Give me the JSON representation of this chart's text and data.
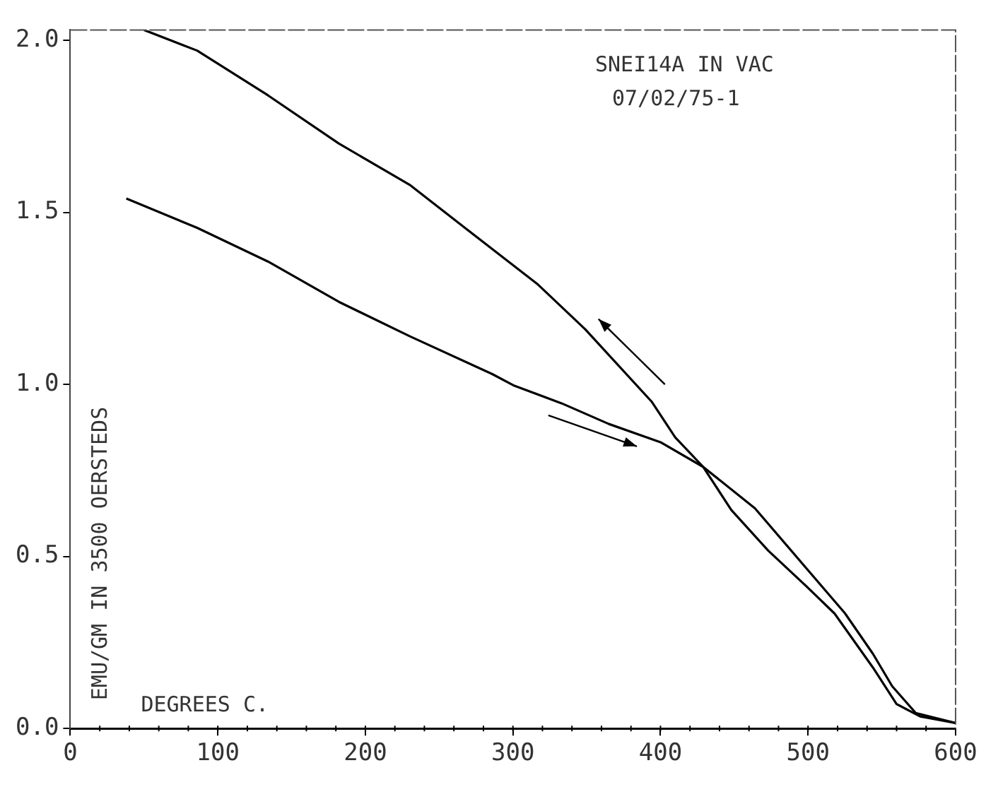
{
  "chart_data": {
    "type": "line",
    "xlabel": "DEGREES C.",
    "ylabel": "EMU/GM IN 3500 OERSTEDS",
    "annotations": [
      "SNEI14A IN VAC",
      "07/02/75-1"
    ],
    "xlim": [
      0,
      600
    ],
    "xticks": [
      0,
      100,
      200,
      300,
      400,
      500,
      600
    ],
    "ylim": [
      0,
      2.03
    ],
    "yticks": [
      {
        "value": 0,
        "label": "0.0"
      },
      {
        "value": 0.5,
        "label": "0.5"
      },
      {
        "value": 1,
        "label": "1.0"
      },
      {
        "value": 1.5,
        "label": "1.5"
      },
      {
        "value": 2,
        "label": "2.0"
      }
    ],
    "grid": false,
    "legend": false,
    "marker": "none",
    "line_style": "solid",
    "series": [
      {
        "color": "#000000",
        "x": [
          38,
          86,
          134,
          182,
          230,
          286,
          301,
          333,
          365,
          400,
          429,
          464,
          499,
          525,
          544,
          557,
          573,
          600
        ],
        "values": [
          1.54,
          1.455,
          1.357,
          1.24,
          1.14,
          1.03,
          0.996,
          0.945,
          0.885,
          0.832,
          0.76,
          0.64,
          0.465,
          0.335,
          0.217,
          0.123,
          0.045,
          0.016
        ]
      },
      {
        "color": "#000000",
        "x": [
          600,
          576,
          560,
          544,
          518,
          499,
          473,
          448,
          429,
          410,
          394,
          349,
          317,
          269,
          230,
          182,
          134,
          86,
          50
        ],
        "values": [
          0.016,
          0.035,
          0.071,
          0.177,
          0.334,
          0.413,
          0.517,
          0.635,
          0.76,
          0.846,
          0.95,
          1.16,
          1.29,
          1.45,
          1.58,
          1.7,
          1.84,
          1.97,
          2.03
        ]
      }
    ]
  }
}
